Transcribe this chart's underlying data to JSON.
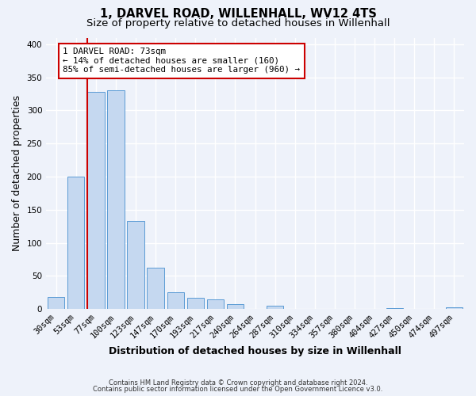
{
  "title": "1, DARVEL ROAD, WILLENHALL, WV12 4TS",
  "subtitle": "Size of property relative to detached houses in Willenhall",
  "xlabel": "Distribution of detached houses by size in Willenhall",
  "ylabel": "Number of detached properties",
  "bin_labels": [
    "30sqm",
    "53sqm",
    "77sqm",
    "100sqm",
    "123sqm",
    "147sqm",
    "170sqm",
    "193sqm",
    "217sqm",
    "240sqm",
    "264sqm",
    "287sqm",
    "310sqm",
    "334sqm",
    "357sqm",
    "380sqm",
    "404sqm",
    "427sqm",
    "450sqm",
    "474sqm",
    "497sqm"
  ],
  "bar_heights": [
    18,
    200,
    328,
    330,
    133,
    62,
    25,
    17,
    15,
    8,
    0,
    5,
    0,
    0,
    0,
    0,
    0,
    2,
    0,
    0,
    3
  ],
  "bar_color": "#c5d8f0",
  "bar_edgecolor": "#5b9bd5",
  "ylim": [
    0,
    410
  ],
  "yticks": [
    0,
    50,
    100,
    150,
    200,
    250,
    300,
    350,
    400
  ],
  "vline_color": "#cc0000",
  "annotation_title": "1 DARVEL ROAD: 73sqm",
  "annotation_line1": "← 14% of detached houses are smaller (160)",
  "annotation_line2": "85% of semi-detached houses are larger (960) →",
  "annotation_box_color": "#cc0000",
  "footer_line1": "Contains HM Land Registry data © Crown copyright and database right 2024.",
  "footer_line2": "Contains public sector information licensed under the Open Government Licence v3.0.",
  "background_color": "#eef2fa",
  "plot_background": "#eef2fa",
  "grid_color": "#ffffff",
  "title_fontsize": 10.5,
  "subtitle_fontsize": 9.5,
  "axis_label_fontsize": 9,
  "tick_fontsize": 7.5
}
